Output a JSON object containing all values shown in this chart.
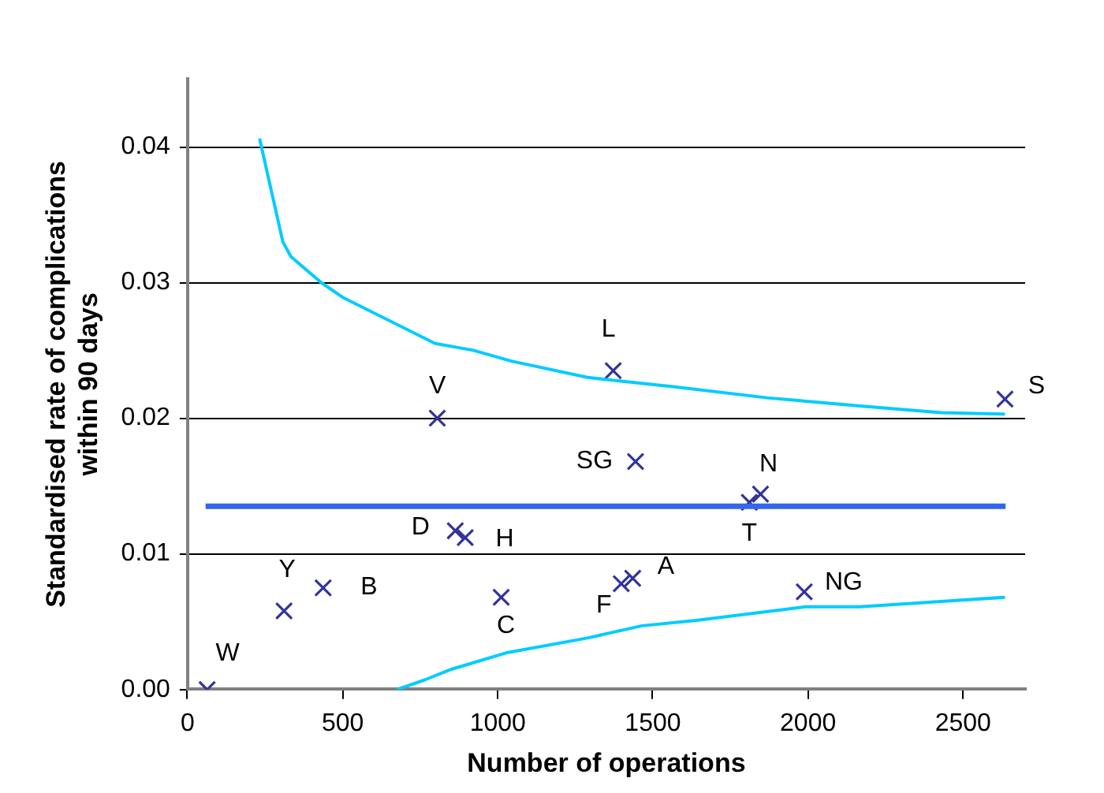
{
  "chart_data": {
    "type": "scatter",
    "xlabel": "Number of operations",
    "ylabel": "Standardised rate of complications within 90 days",
    "xlim": [
      0,
      2700
    ],
    "xticks": [
      0,
      500,
      1000,
      1500,
      2000,
      2500
    ],
    "ylim": [
      0,
      0.045
    ],
    "yticks": [
      {
        "value": 0,
        "label": "0.00"
      },
      0.01,
      0.02,
      0.03,
      0.04
    ],
    "grid": "y",
    "legend": false,
    "series": [
      {
        "type": "line",
        "color": "#00ccff",
        "x": [
          232,
          307,
          333,
          430,
          500,
          798,
          921,
          1044,
          1289,
          1570,
          1868,
          2167,
          2430,
          2635
        ],
        "values": [
          0.0406,
          0.033,
          0.0319,
          0.03,
          0.0289,
          0.0255,
          0.025,
          0.0242,
          0.023,
          0.0223,
          0.0215,
          0.0209,
          0.0204,
          0.0203
        ]
      },
      {
        "type": "line",
        "color": "#00ccff",
        "x": [
          674,
          763,
          851,
          1026,
          1289,
          1465,
          1640,
          1991,
          2167,
          2635
        ],
        "values": [
          0,
          0.0007,
          0.0015,
          0.0027,
          0.0038,
          0.0047,
          0.0051,
          0.0061,
          0.0061,
          0.0068
        ]
      },
      {
        "type": "line",
        "color": "#3366ee",
        "x": [
          58,
          2637
        ],
        "values": [
          0.0135,
          0.0135
        ]
      },
      {
        "marker": "cross",
        "color": "#333399",
        "x": [
          63,
          311,
          437,
          805,
          863,
          895,
          1011,
          1398,
          1435,
          1444,
          1372,
          1811,
          1847,
          1988,
          2635
        ],
        "values": [
          0,
          0.0058,
          0.0075,
          0.02,
          0.0117,
          0.0112,
          0.0068,
          0.0078,
          0.0082,
          0.0168,
          0.0235,
          0.0138,
          0.0144,
          0.0072,
          0.0214
        ]
      }
    ],
    "annotations": [
      {
        "text": "W",
        "x": 63,
        "y": 0
      },
      {
        "text": "Y",
        "x": 311,
        "y": 0.0058
      },
      {
        "text": "B",
        "x": 437,
        "y": 0.0075
      },
      {
        "text": "V",
        "x": 805,
        "y": 0.02
      },
      {
        "text": "D",
        "x": 863,
        "y": 0.0117
      },
      {
        "text": "H",
        "x": 895,
        "y": 0.0112
      },
      {
        "text": "C",
        "x": 1011,
        "y": 0.0068
      },
      {
        "text": "F",
        "x": 1398,
        "y": 0.0078
      },
      {
        "text": "A",
        "x": 1435,
        "y": 0.0082
      },
      {
        "text": "SG",
        "x": 1444,
        "y": 0.0168
      },
      {
        "text": "L",
        "x": 1372,
        "y": 0.0235
      },
      {
        "text": "T",
        "x": 1811,
        "y": 0.0138
      },
      {
        "text": "N",
        "x": 1847,
        "y": 0.0144
      },
      {
        "text": "NG",
        "x": 1988,
        "y": 0.0072
      },
      {
        "text": "S",
        "x": 2635,
        "y": 0.0214
      }
    ]
  }
}
